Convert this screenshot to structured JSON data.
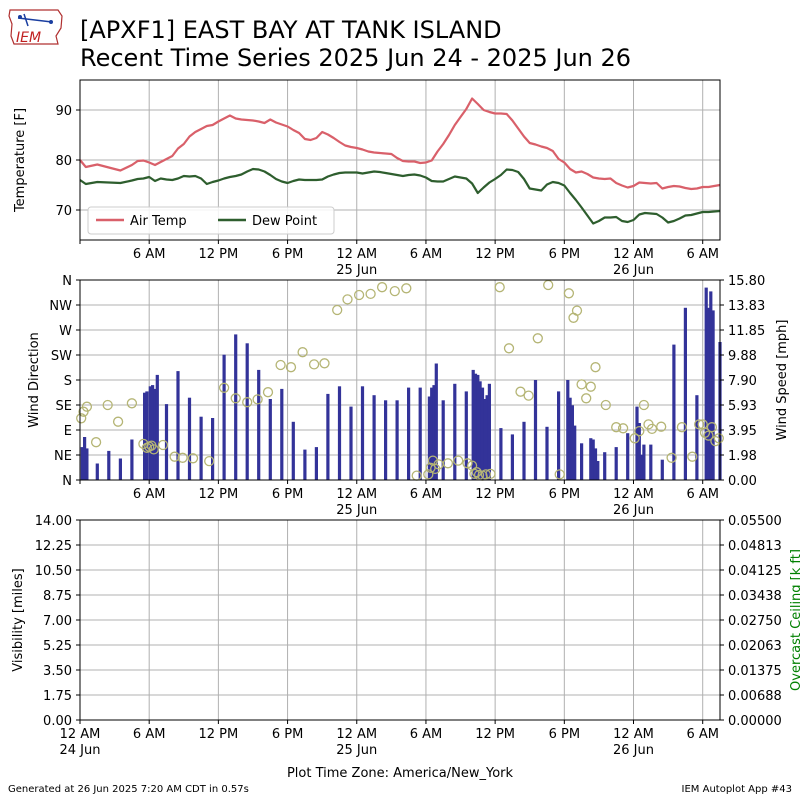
{
  "header": {
    "logo_text": "IEM",
    "title_line1": "[APXF1] EAST BAY AT TANK ISLAND",
    "title_line2": "Recent Time Series 2025 Jun 24 - 2025 Jun 26"
  },
  "footer": {
    "left": "Generated at 26 Jun 2025 7:20 AM CDT in 0.57s",
    "right": "IEM Autoplot App #43"
  },
  "colors": {
    "air_temp": "#d9606a",
    "dew_point": "#2e5e2e",
    "wind_speed_bar": "#333399",
    "wind_dir_marker": "#b5b575",
    "ceiling_axis": "#008000",
    "grid": "#b0b0b0"
  },
  "time_axis": {
    "tick_hours": [
      0,
      6,
      12,
      18,
      24,
      30,
      36,
      42,
      48,
      54
    ],
    "tick_labels": [
      "12 AM",
      "6 AM",
      "12 PM",
      "6 PM",
      "12 AM",
      "6 AM",
      "12 PM",
      "6 PM",
      "12 AM",
      "6 AM"
    ],
    "date_labels": [
      {
        "hour": 0,
        "text": "24 Jun",
        "panel": "bottom"
      },
      {
        "hour": 24,
        "text": "25 Jun",
        "panel": "all"
      },
      {
        "hour": 48,
        "text": "26 Jun",
        "panel": "all"
      }
    ],
    "xlabel": "Plot Time Zone: America/New_York",
    "x_range_hours": [
      0,
      55.5
    ]
  },
  "chart_data": [
    {
      "type": "line",
      "ylabel": "Temperature [F]",
      "ylim": [
        64,
        96
      ],
      "yticks": [
        70,
        80,
        90
      ],
      "x_unit": "hours since 12 AM 24 Jun",
      "legend_position": "lower-left",
      "series": [
        {
          "name": "Air Temp",
          "x": [
            0,
            0.5,
            1.5,
            2.5,
            3.5,
            4.5,
            5.0,
            5.5,
            6.0,
            6.5,
            7.0,
            7.5,
            8.0,
            8.5,
            9.0,
            9.5,
            10.0,
            10.5,
            11.0,
            11.5,
            12.0,
            12.5,
            13.0,
            13.5,
            14.0,
            14.5,
            15.0,
            15.5,
            16.0,
            16.5,
            17.0,
            17.5,
            18.0,
            18.5,
            19.0,
            19.5,
            20.0,
            20.5,
            21.0,
            21.5,
            22.0,
            22.5,
            23.0,
            23.5,
            24.0,
            24.5,
            25.0,
            25.5,
            26.0,
            26.5,
            27.0,
            27.5,
            28.0,
            28.5,
            29.0,
            29.5,
            30.0,
            30.5,
            31.0,
            31.5,
            32.0,
            32.5,
            33.0,
            33.5,
            34.0,
            34.5,
            35.0,
            35.5,
            36.0,
            36.5,
            37.0,
            37.5,
            38.0,
            38.5,
            39.0,
            39.5,
            40.0,
            40.5,
            41.0,
            41.5,
            42.0,
            42.5,
            43.0,
            43.5,
            44.0,
            44.5,
            45.0,
            45.5,
            46.0,
            46.5,
            47.0,
            47.5,
            48.0,
            48.5,
            49.0,
            49.5,
            50.0,
            50.5,
            51.0,
            51.5,
            52.0,
            52.5,
            53.0,
            53.5,
            54.0,
            54.5,
            55.0,
            55.5
          ],
          "values": [
            80.0,
            78.6,
            79.1,
            78.5,
            77.9,
            79.0,
            79.8,
            79.9,
            79.5,
            79.0,
            79.6,
            80.2,
            80.8,
            82.3,
            83.2,
            84.7,
            85.6,
            86.2,
            86.8,
            87.0,
            87.7,
            88.3,
            88.9,
            88.3,
            88.1,
            88.0,
            87.9,
            87.7,
            87.4,
            88.1,
            87.5,
            87.1,
            86.7,
            86.0,
            85.4,
            84.2,
            84.0,
            84.4,
            85.6,
            85.1,
            84.4,
            83.6,
            82.9,
            82.6,
            82.4,
            82.1,
            81.7,
            81.5,
            81.4,
            81.3,
            81.2,
            80.4,
            79.8,
            79.7,
            79.7,
            79.4,
            79.5,
            79.9,
            81.7,
            83.2,
            85.0,
            87.0,
            88.6,
            90.2,
            92.3,
            91.2,
            90.0,
            89.6,
            89.3,
            89.3,
            89.2,
            87.9,
            86.3,
            84.7,
            83.4,
            83.1,
            82.7,
            82.4,
            81.8,
            80.2,
            79.5,
            78.2,
            77.5,
            77.7,
            77.2,
            76.5,
            76.3,
            76.2,
            76.3,
            75.4,
            74.9,
            74.5,
            74.8,
            75.5,
            75.4,
            75.3,
            75.4,
            74.3,
            74.6,
            74.8,
            74.7,
            74.4,
            74.2,
            74.3,
            74.6,
            74.6,
            74.8,
            75.0
          ]
        },
        {
          "name": "Dew Point",
          "x": [
            0,
            0.5,
            1.5,
            2.5,
            3.5,
            4.5,
            5.0,
            5.5,
            6.0,
            6.5,
            7.0,
            7.5,
            8.0,
            8.5,
            9.0,
            9.5,
            10.0,
            10.5,
            11.0,
            11.5,
            12.0,
            12.5,
            13.0,
            13.5,
            14.0,
            14.5,
            15.0,
            15.5,
            16.0,
            16.5,
            17.0,
            17.5,
            18.0,
            18.5,
            19.0,
            19.5,
            20.0,
            20.5,
            21.0,
            21.5,
            22.0,
            22.5,
            23.0,
            23.5,
            24.0,
            24.5,
            25.0,
            25.5,
            26.0,
            26.5,
            27.0,
            27.5,
            28.0,
            28.5,
            29.0,
            29.5,
            30.0,
            30.5,
            31.0,
            31.5,
            32.0,
            32.5,
            33.0,
            33.5,
            34.0,
            34.5,
            35.0,
            35.5,
            36.0,
            36.5,
            37.0,
            37.5,
            38.0,
            38.5,
            39.0,
            39.5,
            40.0,
            40.5,
            41.0,
            41.5,
            42.0,
            42.5,
            43.0,
            43.5,
            44.0,
            44.5,
            45.0,
            45.5,
            46.0,
            46.5,
            47.0,
            47.5,
            48.0,
            48.5,
            49.0,
            49.5,
            50.0,
            50.5,
            51.0,
            51.5,
            52.0,
            52.5,
            53.0,
            53.5,
            54.0,
            54.5,
            55.0,
            55.5
          ],
          "values": [
            76.0,
            75.2,
            75.6,
            75.5,
            75.4,
            75.9,
            76.2,
            76.3,
            76.6,
            75.8,
            76.3,
            76.1,
            76.0,
            76.3,
            76.8,
            76.7,
            76.8,
            76.3,
            75.2,
            75.6,
            75.9,
            76.3,
            76.6,
            76.8,
            77.1,
            77.7,
            78.2,
            78.1,
            77.7,
            77.0,
            76.2,
            75.7,
            75.4,
            75.8,
            76.1,
            76.0,
            76.0,
            76.0,
            76.1,
            76.7,
            77.1,
            77.4,
            77.5,
            77.5,
            77.5,
            77.3,
            77.5,
            77.7,
            77.6,
            77.4,
            77.2,
            77.0,
            76.8,
            77.0,
            77.1,
            76.9,
            76.5,
            75.8,
            75.7,
            75.7,
            76.2,
            76.7,
            76.5,
            76.3,
            75.3,
            73.4,
            74.5,
            75.5,
            76.2,
            77.0,
            78.1,
            78.0,
            77.6,
            76.2,
            74.3,
            74.1,
            73.9,
            75.1,
            75.6,
            75.4,
            74.9,
            73.4,
            72.0,
            70.5,
            68.9,
            67.3,
            67.8,
            68.5,
            68.5,
            68.6,
            67.8,
            67.6,
            68.0,
            69.1,
            69.4,
            69.3,
            69.2,
            68.5,
            67.5,
            67.8,
            68.3,
            68.9,
            69.0,
            69.3,
            69.6,
            69.6,
            69.7,
            69.8
          ]
        }
      ]
    },
    {
      "type": "bar",
      "ylabel": "Wind Direction",
      "y2label": "Wind Speed [mph]",
      "ylim": [
        0,
        360
      ],
      "ytick_values": [
        0,
        45,
        90,
        135,
        180,
        225,
        270,
        315,
        360
      ],
      "ytick_labels": [
        "N",
        "NE",
        "E",
        "SE",
        "S",
        "SW",
        "W",
        "NW",
        "N"
      ],
      "y2lim": [
        0,
        15.8
      ],
      "y2tick_labels": [
        "0.00",
        "1.98",
        "3.95",
        "5.93",
        "7.90",
        "9.88",
        "11.85",
        "13.83",
        "15.80"
      ],
      "x_unit": "hours since 12 AM 24 Jun",
      "series": [
        {
          "name": "",
          "marker": "bar",
          "x": [
            0.2,
            0.4,
            0.6,
            1.5,
            2.5,
            3.5,
            4.5,
            5.6,
            5.8,
            6.1,
            6.3,
            6.5,
            6.7,
            7.5,
            8.5,
            9.5,
            10.5,
            11.5,
            12.5,
            13.5,
            14.5,
            15.5,
            16.5,
            17.5,
            18.5,
            19.5,
            20.5,
            21.5,
            22.5,
            23.5,
            24.5,
            25.5,
            26.5,
            27.5,
            28.5,
            29.5,
            30.3,
            30.5,
            30.7,
            30.9,
            31.5,
            32.5,
            33.5,
            34.1,
            34.3,
            34.5,
            34.7,
            34.9,
            35.1,
            35.3,
            35.5,
            36.5,
            37.5,
            38.5,
            39.5,
            40.5,
            41.5,
            42.3,
            42.5,
            42.7,
            42.9,
            43.5,
            44.3,
            44.5,
            44.7,
            44.9,
            45.5,
            46.5,
            47.5,
            48.3,
            48.5,
            48.7,
            48.9,
            49.5,
            50.5,
            51.5,
            52.5,
            53.5,
            54.3,
            54.5,
            54.7,
            54.9,
            55.5
          ],
          "values": [
            2.6,
            3.4,
            2.5,
            1.3,
            2.3,
            1.7,
            3.2,
            6.9,
            7.0,
            7.4,
            7.5,
            7.2,
            8.3,
            6.0,
            8.6,
            6.5,
            5.0,
            4.9,
            9.9,
            11.5,
            10.8,
            8.7,
            6.4,
            7.2,
            4.6,
            2.4,
            2.6,
            6.8,
            7.4,
            5.8,
            7.4,
            6.7,
            6.3,
            6.3,
            7.3,
            7.3,
            6.6,
            7.3,
            7.5,
            9.2,
            6.3,
            7.6,
            7.0,
            8.7,
            8.4,
            8.3,
            7.8,
            7.3,
            6.4,
            6.7,
            7.6,
            4.1,
            3.6,
            4.6,
            7.9,
            4.2,
            7.0,
            7.9,
            6.5,
            5.9,
            4.3,
            2.9,
            3.3,
            3.2,
            2.5,
            1.5,
            2.2,
            2.6,
            3.7,
            5.8,
            4.5,
            2.0,
            2.8,
            2.8,
            1.6,
            10.7,
            13.6,
            6.7,
            15.2,
            13.6,
            14.9,
            13.4,
            10.9
          ]
        },
        {
          "name": "",
          "marker": "circle",
          "x": [
            0.1,
            0.3,
            0.6,
            1.4,
            2.4,
            3.3,
            4.5,
            5.5,
            5.8,
            6.0,
            6.2,
            6.4,
            7.2,
            8.2,
            8.9,
            9.8,
            11.2,
            12.5,
            13.5,
            14.5,
            15.4,
            16.3,
            17.4,
            18.3,
            19.3,
            20.3,
            21.2,
            22.3,
            23.2,
            24.2,
            25.2,
            26.2,
            27.3,
            28.3,
            29.2,
            30.2,
            30.4,
            30.6,
            30.8,
            31.1,
            31.9,
            32.8,
            33.6,
            34.0,
            34.2,
            34.4,
            34.6,
            34.9,
            35.2,
            35.6,
            36.4,
            37.2,
            38.2,
            38.9,
            39.7,
            40.6,
            41.6,
            42.4,
            42.8,
            43.1,
            43.5,
            43.9,
            44.3,
            44.7,
            45.6,
            46.5,
            47.1,
            48.1,
            48.5,
            48.9,
            49.3,
            49.6,
            50.4,
            51.3,
            52.2,
            53.1,
            53.7,
            54.0,
            54.2,
            54.5,
            54.8,
            55.1,
            55.4
          ],
          "values": [
            111,
            123,
            132,
            68,
            135,
            105,
            138,
            65,
            58,
            60,
            62,
            55,
            63,
            42,
            40,
            39,
            34,
            166,
            147,
            140,
            145,
            158,
            207,
            203,
            230,
            208,
            210,
            306,
            325,
            333,
            335,
            347,
            340,
            345,
            8,
            10,
            22,
            35,
            20,
            28,
            30,
            35,
            30,
            26,
            11,
            14,
            9,
            8,
            10,
            11,
            347,
            237,
            159,
            152,
            255,
            351,
            10,
            336,
            292,
            305,
            172,
            147,
            168,
            203,
            135,
            95,
            93,
            75,
            88,
            135,
            100,
            92,
            96,
            40,
            95,
            42,
            100,
            100,
            85,
            80,
            95,
            70,
            75
          ]
        }
      ]
    },
    {
      "type": "line",
      "ylabel": "Visibility [miles]",
      "y2label": "Overcast Ceiling [k ft]",
      "ylim": [
        0,
        14
      ],
      "yticks": [
        "0.00",
        "1.75",
        "3.50",
        "5.25",
        "7.00",
        "8.75",
        "10.50",
        "12.25",
        "14.00"
      ],
      "y2lim": [
        0,
        0.055
      ],
      "y2ticks": [
        "0.00000",
        "0.00688",
        "0.01375",
        "0.02063",
        "0.02750",
        "0.03438",
        "0.04125",
        "0.04813",
        "0.05500"
      ],
      "series": []
    }
  ]
}
